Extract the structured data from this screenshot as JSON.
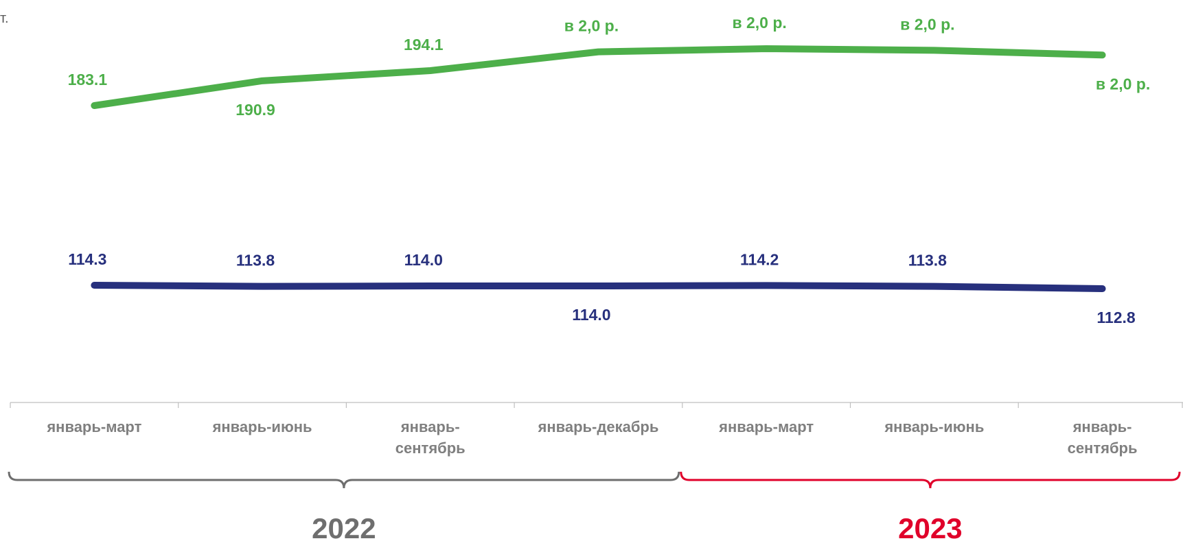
{
  "corner_text": "т.",
  "chart_data": {
    "type": "line",
    "categories": [
      "январь-март",
      "январь-июнь",
      "январь-сентябрь",
      "январь-декабрь",
      "январь-март",
      "январь-июнь",
      "январь-сентябрь"
    ],
    "category_lines": [
      [
        "январь-март"
      ],
      [
        "январь-июнь"
      ],
      [
        "январь-",
        "сентябрь"
      ],
      [
        "январь-декабрь"
      ],
      [
        "январь-март"
      ],
      [
        "январь-июнь"
      ],
      [
        "январь-",
        "сентябрь"
      ]
    ],
    "groups": [
      {
        "label": "2022",
        "from": 0,
        "to": 3,
        "color": "#6e6e6e"
      },
      {
        "label": "2023",
        "from": 4,
        "to": 6,
        "color": "#e0002a"
      }
    ],
    "series": [
      {
        "color": "#4daf4a",
        "values": [
          183.1,
          190.9,
          194.1,
          200.0,
          201.0,
          200.5,
          199.0
        ],
        "labels": [
          "183.1",
          "190.9",
          "194.1",
          "в 2,0 р.",
          "в 2,0 р.",
          "в 2,0 р.",
          "в 2,0 р."
        ]
      },
      {
        "color": "#27307d",
        "values": [
          114.3,
          113.8,
          114.0,
          114.0,
          114.2,
          113.8,
          112.8
        ],
        "labels": [
          "114.3",
          "113.8",
          "114.0",
          "114.0",
          "114.2",
          "113.8",
          "112.8"
        ]
      }
    ],
    "grid": false,
    "legend": "none"
  }
}
